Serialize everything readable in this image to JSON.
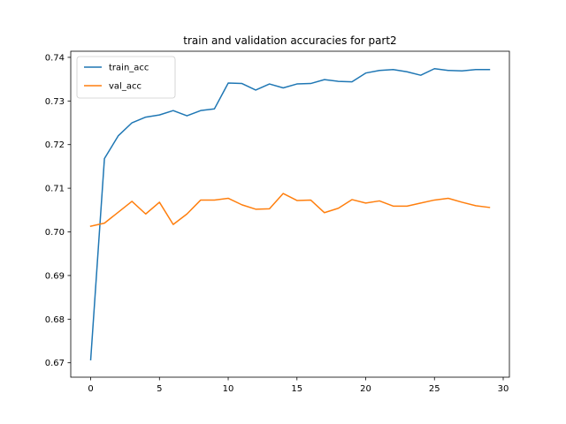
{
  "chart_data": {
    "type": "line",
    "title": "train and validation accuracies for part2",
    "xlabel": "",
    "ylabel": "",
    "xlim": [
      -1.45,
      30.45
    ],
    "ylim": [
      0.6667,
      0.7414
    ],
    "xticks": [
      0,
      5,
      10,
      15,
      20,
      25,
      30
    ],
    "yticks": [
      0.67,
      0.68,
      0.69,
      0.7,
      0.71,
      0.72,
      0.73,
      0.74
    ],
    "grid": false,
    "legend_position": "top-left",
    "x": [
      0,
      1,
      2,
      3,
      4,
      5,
      6,
      7,
      8,
      9,
      10,
      11,
      12,
      13,
      14,
      15,
      16,
      17,
      18,
      19,
      20,
      21,
      22,
      23,
      24,
      25,
      26,
      27,
      28,
      29
    ],
    "series": [
      {
        "name": "train_acc",
        "color": "#1f77b4",
        "values": [
          0.6707,
          0.7168,
          0.722,
          0.725,
          0.7263,
          0.7268,
          0.7278,
          0.7266,
          0.7278,
          0.7282,
          0.7341,
          0.734,
          0.7325,
          0.7339,
          0.733,
          0.7339,
          0.734,
          0.7349,
          0.7345,
          0.7344,
          0.7364,
          0.737,
          0.7372,
          0.7367,
          0.7359,
          0.7374,
          0.737,
          0.7369,
          0.7372,
          0.7372
        ]
      },
      {
        "name": "val_acc",
        "color": "#ff7f0e",
        "values": [
          0.7013,
          0.702,
          0.7045,
          0.707,
          0.7041,
          0.7068,
          0.7017,
          0.7041,
          0.7073,
          0.7073,
          0.7077,
          0.7062,
          0.7052,
          0.7053,
          0.7088,
          0.7072,
          0.7073,
          0.7044,
          0.7054,
          0.7074,
          0.7066,
          0.7071,
          0.7059,
          0.7059,
          0.7066,
          0.7073,
          0.7077,
          0.7068,
          0.706,
          0.7056
        ]
      }
    ]
  }
}
